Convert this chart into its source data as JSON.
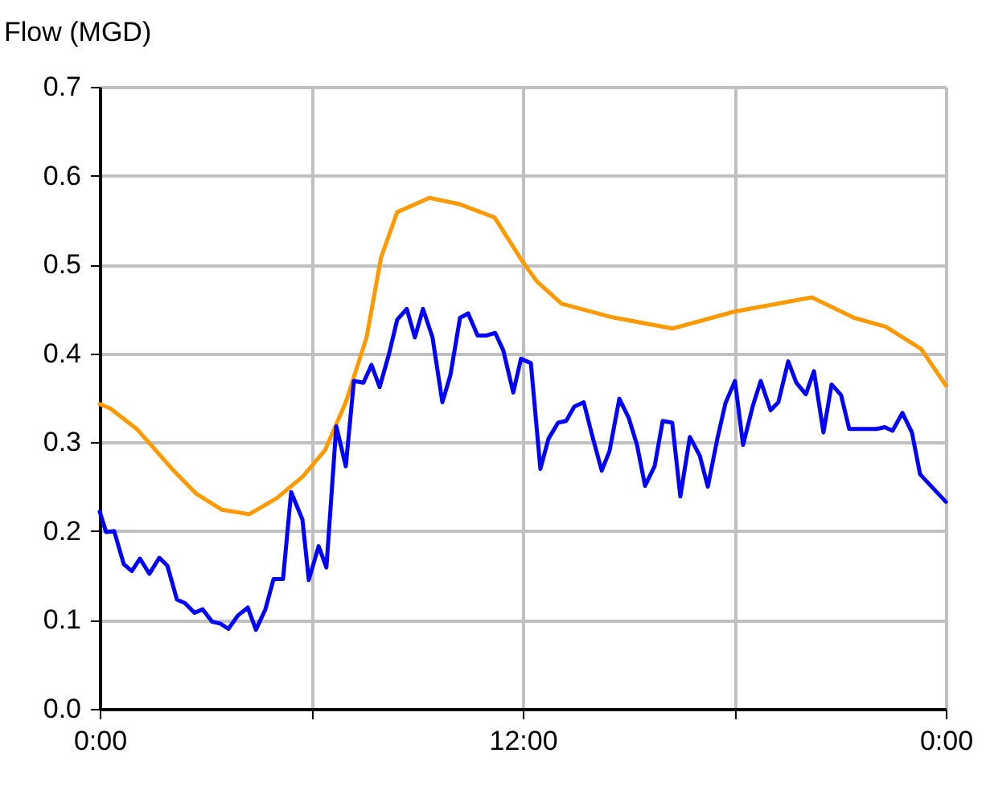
{
  "chart_data": {
    "type": "line",
    "ylabel": "Flow (MGD)",
    "grid": true,
    "marker": "none",
    "line_style": "solid",
    "xlim": [
      0,
      24
    ],
    "xticks": [
      {
        "value": 0,
        "label": "0:00"
      },
      {
        "value": 6,
        "label": null
      },
      {
        "value": 12,
        "label": "12:00"
      },
      {
        "value": 18,
        "label": null
      },
      {
        "value": 24,
        "label": "0:00"
      }
    ],
    "ylim": [
      0,
      0.7
    ],
    "yticks": [
      {
        "value": 0,
        "label": "0.0"
      },
      0.1,
      0.2,
      0.3,
      0.4,
      0.5,
      0.6,
      0.7
    ],
    "series": [
      {
        "color": "#ff9900",
        "x": [
          0,
          0.3,
          1.05,
          2.05,
          2.74,
          3.47,
          4.24,
          5.02,
          5.75,
          6.39,
          6.98,
          7.57,
          7.98,
          8.44,
          9.35,
          10.2,
          11.2,
          12,
          12.4,
          13.1,
          14.5,
          16.25,
          18,
          20.2,
          21.4,
          22.3,
          23.3,
          24
        ],
        "values": [
          0.343,
          0.338,
          0.315,
          0.27,
          0.242,
          0.224,
          0.219,
          0.237,
          0.261,
          0.291,
          0.345,
          0.418,
          0.508,
          0.559,
          0.575,
          0.568,
          0.553,
          0.503,
          0.481,
          0.456,
          0.441,
          0.428,
          0.447,
          0.463,
          0.44,
          0.43,
          0.405,
          0.364
        ]
      },
      {
        "color": "#0000ff",
        "x": [
          0,
          0.18,
          0.41,
          0.68,
          0.91,
          1.14,
          1.41,
          1.69,
          1.92,
          2.19,
          2.42,
          2.69,
          2.92,
          3.19,
          3.42,
          3.65,
          3.92,
          4.2,
          4.43,
          4.7,
          4.93,
          5.2,
          5.43,
          5.75,
          5.93,
          6.21,
          6.43,
          6.71,
          6.98,
          7.21,
          7.48,
          7.71,
          7.94,
          8.21,
          8.44,
          8.71,
          8.94,
          9.17,
          9.44,
          9.72,
          9.95,
          10.22,
          10.45,
          10.72,
          10.95,
          11.22,
          11.45,
          11.73,
          11.95,
          12.23,
          12.5,
          12.73,
          13.0,
          13.23,
          13.46,
          13.73,
          13.96,
          14.24,
          14.46,
          14.74,
          15.01,
          15.24,
          15.47,
          15.74,
          15.97,
          16.24,
          16.47,
          16.74,
          17.02,
          17.25,
          17.52,
          17.75,
          18.02,
          18.25,
          18.52,
          18.75,
          19.03,
          19.25,
          19.53,
          19.76,
          20.03,
          20.26,
          20.53,
          20.76,
          21.03,
          21.26,
          22.04,
          22.27,
          22.49,
          22.77,
          23.04,
          23.27,
          24
        ],
        "values": [
          0.222,
          0.199,
          0.2,
          0.163,
          0.155,
          0.169,
          0.152,
          0.17,
          0.161,
          0.123,
          0.119,
          0.108,
          0.112,
          0.098,
          0.096,
          0.09,
          0.105,
          0.114,
          0.089,
          0.112,
          0.146,
          0.146,
          0.244,
          0.213,
          0.145,
          0.183,
          0.159,
          0.318,
          0.273,
          0.369,
          0.367,
          0.387,
          0.362,
          0.4,
          0.438,
          0.45,
          0.418,
          0.45,
          0.418,
          0.345,
          0.376,
          0.44,
          0.445,
          0.42,
          0.42,
          0.423,
          0.403,
          0.356,
          0.394,
          0.389,
          0.27,
          0.304,
          0.322,
          0.324,
          0.34,
          0.345,
          0.309,
          0.268,
          0.29,
          0.349,
          0.327,
          0.297,
          0.251,
          0.273,
          0.324,
          0.322,
          0.239,
          0.306,
          0.285,
          0.25,
          0.304,
          0.344,
          0.369,
          0.297,
          0.34,
          0.369,
          0.336,
          0.345,
          0.391,
          0.367,
          0.354,
          0.38,
          0.311,
          0.365,
          0.353,
          0.315,
          0.315,
          0.317,
          0.313,
          0.333,
          0.311,
          0.264,
          0.233
        ]
      }
    ]
  }
}
